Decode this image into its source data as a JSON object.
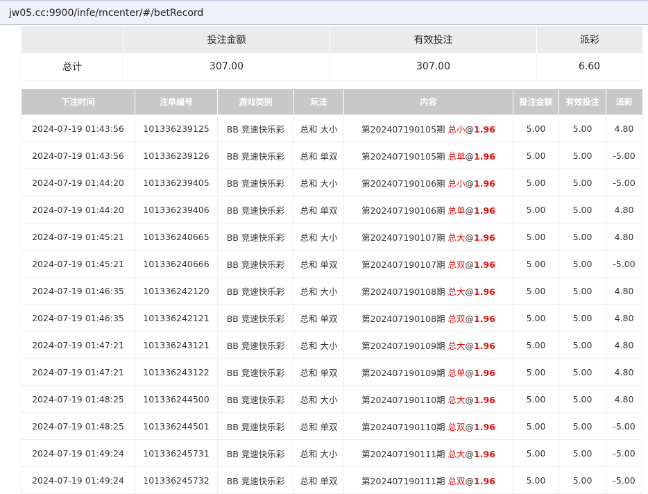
{
  "browser": {
    "url": "jw05.cc:9900/infe/mcenter/#/betRecord"
  },
  "summary": {
    "headers": [
      "",
      "投注金额",
      "有效投注",
      "派彩"
    ],
    "row": [
      "总计",
      "307.00",
      "307.00",
      "6.60"
    ]
  },
  "records": {
    "headers": [
      "下注时间",
      "注单编号",
      "游戏类别",
      "玩法",
      "内容",
      "投注金额",
      "有效投注",
      "派彩"
    ],
    "rows": [
      [
        "2024-07-19 01:43:56",
        "101336239125",
        "BB 竞速快乐彩",
        "总和 大小",
        "第202407190105期",
        "总小",
        "@",
        "1.96",
        "5.00",
        "5.00",
        "4.80"
      ],
      [
        "2024-07-19 01:43:56",
        "101336239126",
        "BB 竞速快乐彩",
        "总和 单双",
        "第202407190105期",
        "总单",
        "@",
        "1.96",
        "5.00",
        "5.00",
        "-5.00"
      ],
      [
        "2024-07-19 01:44:20",
        "101336239405",
        "BB 竞速快乐彩",
        "总和 大小",
        "第202407190106期",
        "总小",
        "@",
        "1.96",
        "5.00",
        "5.00",
        "-5.00"
      ],
      [
        "2024-07-19 01:44:20",
        "101336239406",
        "BB 竞速快乐彩",
        "总和 单双",
        "第202407190106期",
        "总单",
        "@",
        "1.96",
        "5.00",
        "5.00",
        "4.80"
      ],
      [
        "2024-07-19 01:45:21",
        "101336240665",
        "BB 竞速快乐彩",
        "总和 大小",
        "第202407190107期",
        "总大",
        "@",
        "1.96",
        "5.00",
        "5.00",
        "4.80"
      ],
      [
        "2024-07-19 01:45:21",
        "101336240666",
        "BB 竞速快乐彩",
        "总和 单双",
        "第202407190107期",
        "总双",
        "@",
        "1.96",
        "5.00",
        "5.00",
        "-5.00"
      ],
      [
        "2024-07-19 01:46:35",
        "101336242120",
        "BB 竞速快乐彩",
        "总和 大小",
        "第202407190108期",
        "总大",
        "@",
        "1.96",
        "5.00",
        "5.00",
        "4.80"
      ],
      [
        "2024-07-19 01:46:35",
        "101336242121",
        "BB 竞速快乐彩",
        "总和 单双",
        "第202407190108期",
        "总双",
        "@",
        "1.96",
        "5.00",
        "5.00",
        "4.80"
      ],
      [
        "2024-07-19 01:47:21",
        "101336243121",
        "BB 竞速快乐彩",
        "总和 大小",
        "第202407190109期",
        "总大",
        "@",
        "1.96",
        "5.00",
        "5.00",
        "4.80"
      ],
      [
        "2024-07-19 01:47:21",
        "101336243122",
        "BB 竞速快乐彩",
        "总和 单双",
        "第202407190109期",
        "总单",
        "@",
        "1.96",
        "5.00",
        "5.00",
        "4.80"
      ],
      [
        "2024-07-19 01:48:25",
        "101336244500",
        "BB 竞速快乐彩",
        "总和 大小",
        "第202407190110期",
        "总大",
        "@",
        "1.96",
        "5.00",
        "5.00",
        "4.80"
      ],
      [
        "2024-07-19 01:48:25",
        "101336244501",
        "BB 竞速快乐彩",
        "总和 单双",
        "第202407190110期",
        "总双",
        "@",
        "1.96",
        "5.00",
        "5.00",
        "-5.00"
      ],
      [
        "2024-07-19 01:49:24",
        "101336245731",
        "BB 竞速快乐彩",
        "总和 大小",
        "第202407190111期",
        "总大",
        "@",
        "1.96",
        "5.00",
        "5.00",
        "-5.00"
      ],
      [
        "2024-07-19 01:49:24",
        "101336245732",
        "BB 竞速快乐彩",
        "总和 单双",
        "第202407190111期",
        "总双",
        "@",
        "1.96",
        "5.00",
        "5.00",
        "-5.00"
      ]
    ]
  },
  "colors": {
    "highlight": "#e01010",
    "negative": "#e0506a",
    "header_bg": "#c8c8c8"
  }
}
